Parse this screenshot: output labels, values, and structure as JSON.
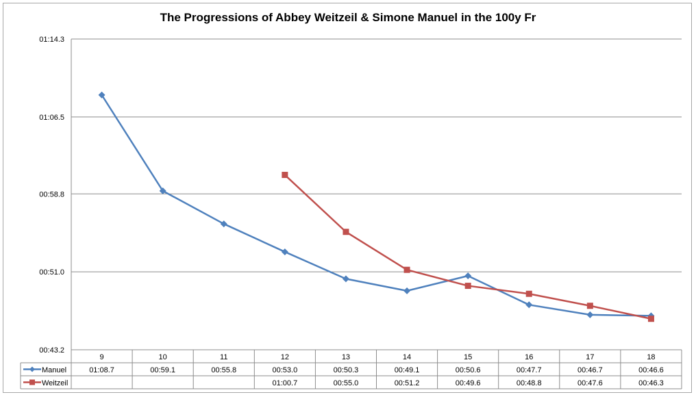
{
  "chart_data": {
    "type": "line",
    "title": "The Progressions of Abbey Weitzeil & Simone Manuel in the 100y Fr",
    "xlabel": "",
    "ylabel": "",
    "categories": [
      "9",
      "10",
      "11",
      "12",
      "13",
      "14",
      "15",
      "16",
      "17",
      "18"
    ],
    "y_tick_labels": [
      "01:14.3",
      "01:06.5",
      "00:58.8",
      "00:51.0",
      "00:43.2"
    ],
    "y_ticks_seconds": [
      74.3,
      66.5,
      58.8,
      51.0,
      43.2
    ],
    "ylim_seconds": [
      43.2,
      74.3
    ],
    "grid": true,
    "legend": "data-table",
    "series": [
      {
        "name": "Manuel",
        "color": "#4f81bd",
        "marker": "diamond",
        "values_seconds": [
          68.7,
          59.1,
          55.8,
          53.0,
          50.3,
          49.1,
          50.6,
          47.7,
          46.7,
          46.6
        ],
        "labels": [
          "01:08.7",
          "00:59.1",
          "00:55.8",
          "00:53.0",
          "00:50.3",
          "00:49.1",
          "00:50.6",
          "00:47.7",
          "00:46.7",
          "00:46.6"
        ]
      },
      {
        "name": "Weitzeil",
        "color": "#c0504d",
        "marker": "square",
        "values_seconds": [
          null,
          null,
          null,
          60.7,
          55.0,
          51.2,
          49.6,
          48.8,
          47.6,
          46.3
        ],
        "labels": [
          "",
          "",
          "",
          "01:00.7",
          "00:55.0",
          "00:51.2",
          "00:49.6",
          "00:48.8",
          "00:47.6",
          "00:46.3"
        ]
      }
    ]
  }
}
